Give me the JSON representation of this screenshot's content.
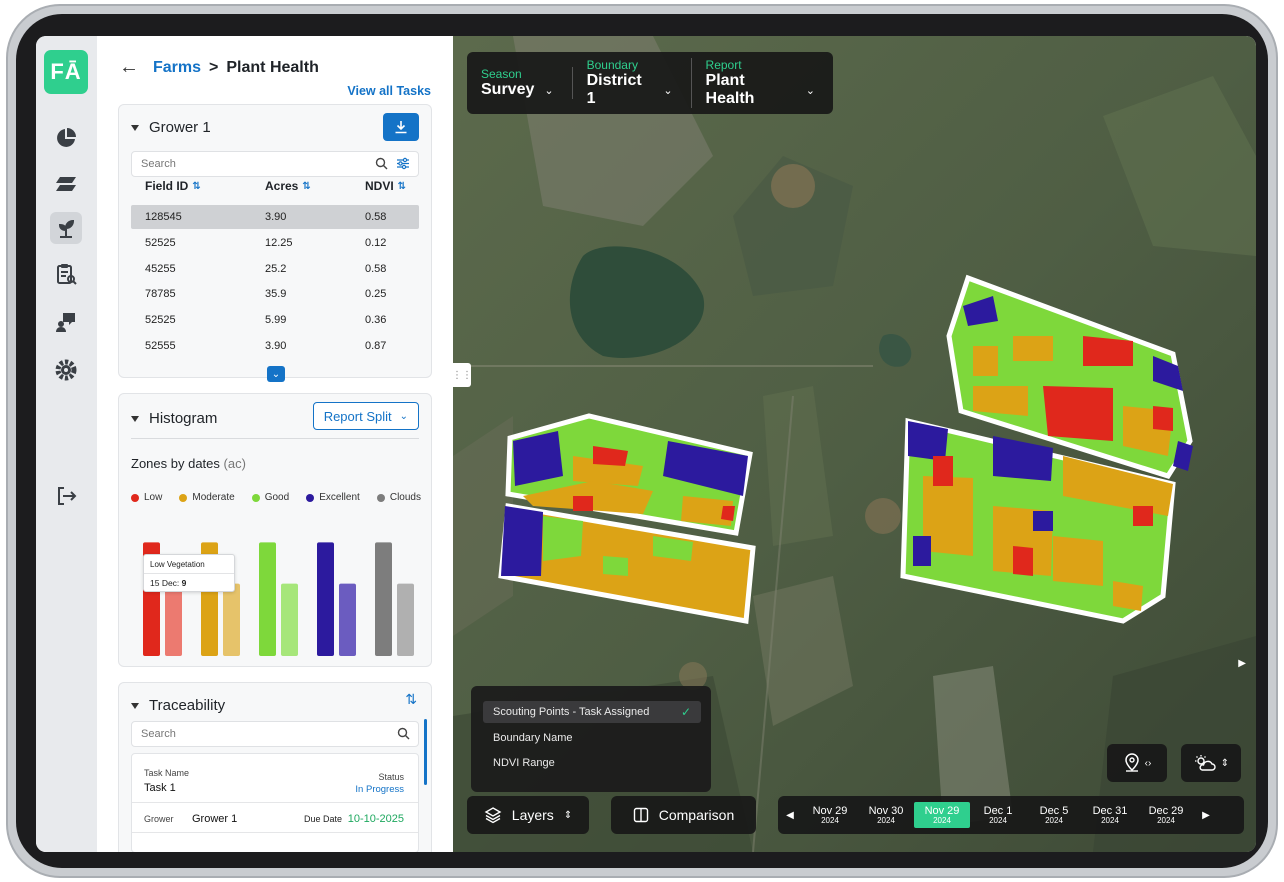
{
  "app": {
    "logo_text": "FĀ"
  },
  "rail": [
    "dashboard-icon",
    "layers-icon",
    "plant-icon",
    "report-icon",
    "chat-icon",
    "settings-icon",
    "logout-icon"
  ],
  "breadcrumb": {
    "parent": "Farms",
    "separator": ">",
    "current": "Plant Health"
  },
  "view_all_tasks": "View all Tasks",
  "grower_card": {
    "title": "Grower 1",
    "search_placeholder": "Search",
    "columns": [
      "Field ID",
      "Acres",
      "NDVI"
    ],
    "rows": [
      {
        "field_id": "128545",
        "acres": "3.90",
        "ndvi": "0.58"
      },
      {
        "field_id": "52525",
        "acres": "12.25",
        "ndvi": "0.12"
      },
      {
        "field_id": "45255",
        "acres": "25.2",
        "ndvi": "0.58"
      },
      {
        "field_id": "78785",
        "acres": "35.9",
        "ndvi": "0.25"
      },
      {
        "field_id": "52525",
        "acres": "5.99",
        "ndvi": "0.36"
      },
      {
        "field_id": "52555",
        "acres": "3.90",
        "ndvi": "0.87"
      }
    ]
  },
  "histogram": {
    "title": "Histogram",
    "split_button": "Report Split",
    "subtitle": "Zones by dates",
    "unit": "(ac)",
    "tooltip_title": "Low Vegetation",
    "tooltip_date": "15 Dec:",
    "tooltip_value": "9",
    "colors": {
      "low": "#e0281c",
      "moderate": "#dca316",
      "good": "#7ed83b",
      "excellent": "#2c1a9e",
      "clouds": "#7d7d7d"
    }
  },
  "chart_data": {
    "type": "bar",
    "categories": [
      "Low",
      "Moderate",
      "Good",
      "Excellent",
      "Clouds"
    ],
    "series": [
      {
        "values": [
          11,
          11,
          11,
          11,
          11
        ]
      },
      {
        "values": [
          9,
          7,
          7,
          7,
          7
        ]
      }
    ],
    "ylim": [
      0,
      12
    ],
    "legend": [
      "Low",
      "Moderate",
      "Good",
      "Excellent",
      "Clouds"
    ]
  },
  "traceability": {
    "title": "Traceability",
    "search_placeholder": "Search",
    "task_name_label": "Task Name",
    "task_name": "Task 1",
    "status_label": "Status",
    "status": "In Progress",
    "grower_label": "Grower",
    "grower": "Grower 1",
    "due_label": "Due Date",
    "due": "10-10-2025"
  },
  "map": {
    "season": {
      "label": "Season",
      "value": "Survey"
    },
    "boundary": {
      "label": "Boundary",
      "value": "District 1"
    },
    "report": {
      "label": "Report",
      "value": "Plant Health"
    },
    "layers_menu": [
      "Scouting Points - Task Assigned",
      "Boundary Name",
      "NDVI Range"
    ],
    "layers_button": "Layers",
    "comparison_button": "Comparison",
    "dates": [
      {
        "d": "Nov 29",
        "y": "2024"
      },
      {
        "d": "Nov 30",
        "y": "2024"
      },
      {
        "d": "Nov 29",
        "y": "2024"
      },
      {
        "d": "Dec 1",
        "y": "2024"
      },
      {
        "d": "Dec 5",
        "y": "2024"
      },
      {
        "d": "Dec 31",
        "y": "2024"
      },
      {
        "d": "Dec 29",
        "y": "2024"
      }
    ],
    "active_date_index": 2
  }
}
